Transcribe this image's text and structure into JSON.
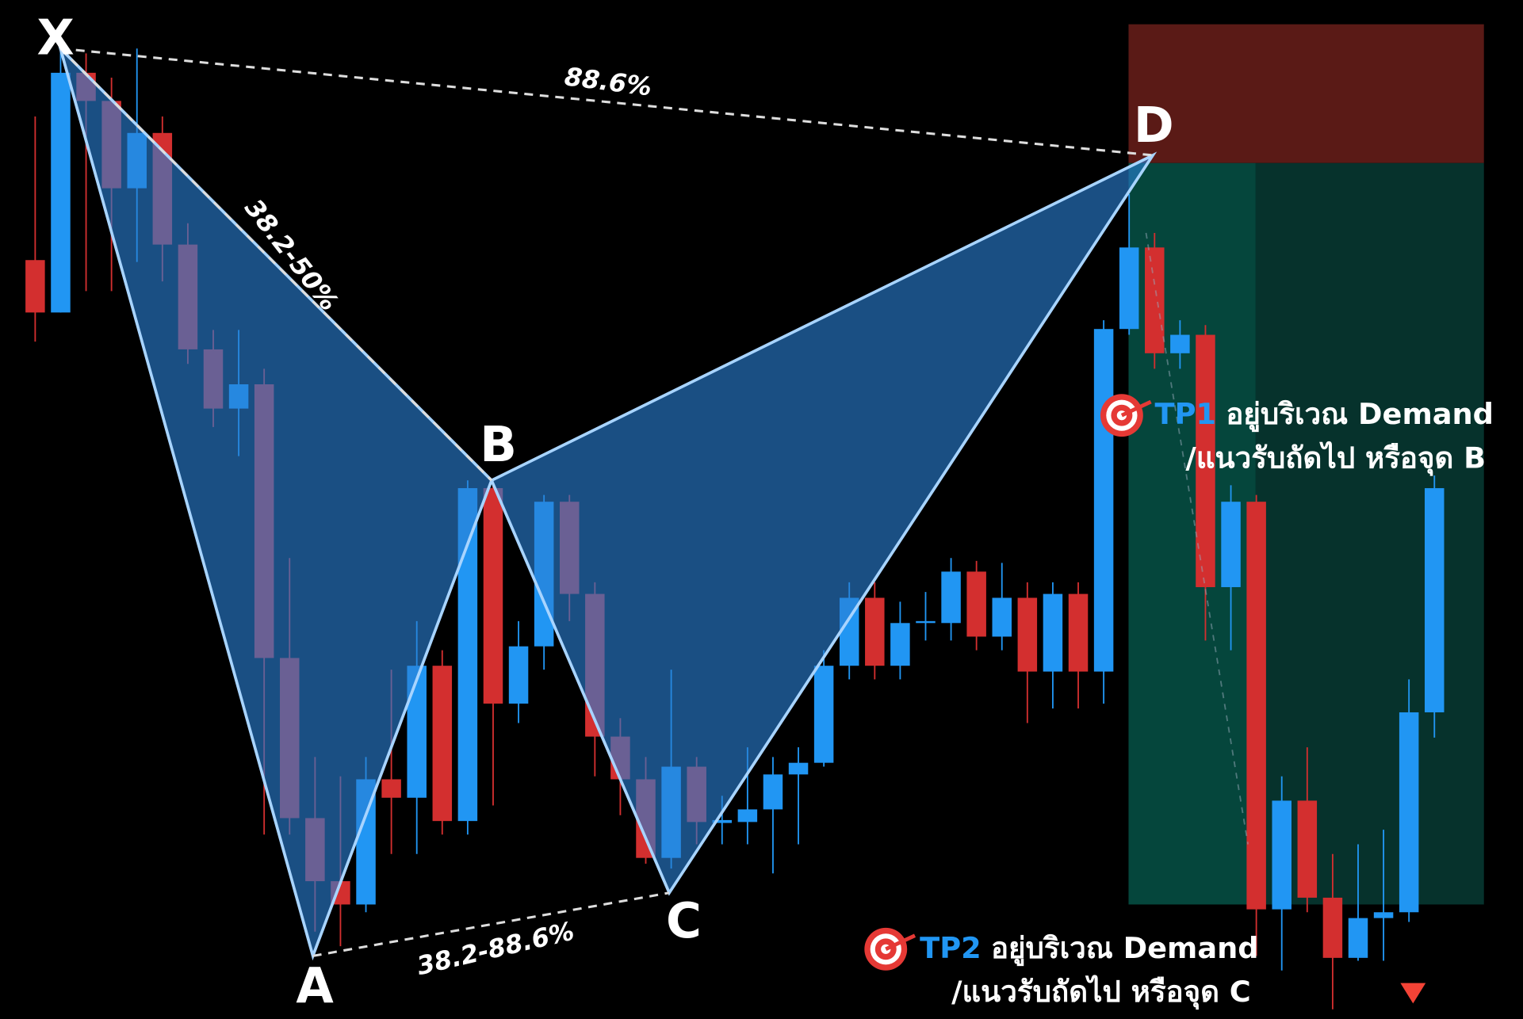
{
  "chart_data": {
    "type": "candlestick",
    "ylim": [
      0,
      1050
    ],
    "up_color": "#2196f3",
    "down_color": "#d32f2f",
    "open": [
      782,
      728,
      975,
      946,
      856,
      913,
      798,
      690,
      629,
      654,
      372,
      207,
      142,
      118,
      247,
      228,
      364,
      204,
      547,
      325,
      384,
      533,
      438,
      291,
      247,
      166,
      260,
      202,
      203,
      216,
      252,
      264,
      364,
      434,
      364,
      408,
      408,
      461,
      394,
      434,
      358,
      438,
      358,
      711,
      795,
      686,
      705,
      445,
      533,
      113,
      225,
      125,
      63,
      104,
      110,
      316
    ],
    "high": [
      930,
      1002,
      995,
      970,
      1000,
      930,
      820,
      710,
      710,
      670,
      475,
      270,
      250,
      270,
      360,
      410,
      380,
      555,
      555,
      410,
      540,
      540,
      450,
      310,
      270,
      360,
      270,
      230,
      280,
      270,
      280,
      380,
      450,
      450,
      430,
      440,
      475,
      472,
      470,
      450,
      450,
      450,
      720,
      850,
      810,
      720,
      715,
      550,
      540,
      250,
      280,
      170,
      180,
      195,
      350,
      560
    ],
    "low": [
      698,
      728,
      750,
      750,
      780,
      760,
      675,
      610,
      580,
      190,
      190,
      90,
      75,
      110,
      170,
      170,
      190,
      190,
      220,
      305,
      360,
      410,
      250,
      210,
      160,
      155,
      180,
      180,
      180,
      150,
      180,
      260,
      350,
      350,
      350,
      390,
      390,
      380,
      380,
      305,
      320,
      320,
      325,
      705,
      670,
      670,
      390,
      380,
      65,
      50,
      110,
      10,
      60,
      60,
      100,
      290
    ],
    "close": [
      728,
      975,
      946,
      856,
      913,
      798,
      690,
      629,
      654,
      372,
      207,
      142,
      118,
      247,
      228,
      364,
      204,
      547,
      325,
      384,
      533,
      438,
      291,
      247,
      166,
      260,
      203,
      205,
      216,
      252,
      264,
      364,
      434,
      364,
      408,
      410,
      461,
      394,
      434,
      358,
      438,
      358,
      711,
      795,
      686,
      705,
      445,
      533,
      113,
      225,
      125,
      63,
      104,
      110,
      316,
      547
    ],
    "pattern": {
      "points": [
        "X",
        "A",
        "B",
        "C",
        "D"
      ],
      "ratios": [
        "88.6%",
        "38.2-50%",
        "38.2-88.6%"
      ]
    },
    "annotations": [
      {
        "tag": "TP1",
        "lines": [
          "อยู่บริเวณ Demand",
          "/แนวรับถัดไป หรือจุด B"
        ]
      },
      {
        "tag": "TP2",
        "lines": [
          "อยู่บริเวณ Demand",
          "/แนวรับถัดไป หรือจุด C"
        ]
      }
    ]
  }
}
